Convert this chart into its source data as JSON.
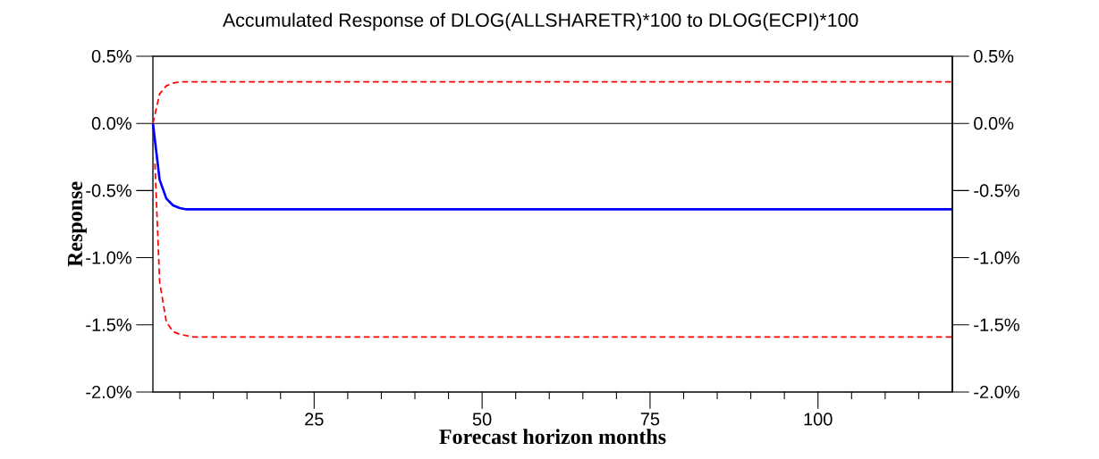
{
  "chart_data": {
    "type": "line",
    "title": "Accumulated Response of DLOG(ALLSHARETR)*100 to DLOG(ECPI)*100",
    "xlabel": "Forecast horizon months",
    "ylabel": "Response",
    "series": [
      {
        "color": "#0000ff",
        "line_style": "solid",
        "x": [
          1,
          2,
          3,
          4,
          5,
          6,
          120
        ],
        "values": [
          0,
          -0.42,
          -0.56,
          -0.61,
          -0.63,
          -0.64,
          -0.64
        ]
      },
      {
        "color": "#ff0000",
        "line_style": "dashed",
        "x": [
          1,
          2,
          3,
          4,
          5,
          6,
          120
        ],
        "values": [
          0,
          0.22,
          0.28,
          0.3,
          0.31,
          0.31,
          0.31
        ]
      },
      {
        "color": "#ff0000",
        "line_style": "dashed",
        "x": [
          1.3,
          2,
          3,
          4,
          5,
          6,
          7,
          120
        ],
        "values": [
          -0.3,
          -1.18,
          -1.48,
          -1.55,
          -1.57,
          -1.58,
          -1.59,
          -1.59
        ]
      }
    ],
    "xlim": [
      1,
      120
    ],
    "xticks": [
      {
        "value": 5,
        "label": null
      },
      {
        "value": 10,
        "label": null
      },
      {
        "value": 15,
        "label": null
      },
      {
        "value": 20,
        "label": null
      },
      25,
      {
        "value": 30,
        "label": null
      },
      {
        "value": 35,
        "label": null
      },
      {
        "value": 40,
        "label": null
      },
      {
        "value": 45,
        "label": null
      },
      50,
      {
        "value": 55,
        "label": null
      },
      {
        "value": 60,
        "label": null
      },
      {
        "value": 65,
        "label": null
      },
      {
        "value": 70,
        "label": null
      },
      75,
      {
        "value": 80,
        "label": null
      },
      {
        "value": 85,
        "label": null
      },
      {
        "value": 90,
        "label": null
      },
      {
        "value": 95,
        "label": null
      },
      100,
      {
        "value": 105,
        "label": null
      },
      {
        "value": 110,
        "label": null
      },
      {
        "value": 115,
        "label": null
      }
    ],
    "ylim": [
      -2.0,
      0.5
    ],
    "yticks": [
      {
        "value": -2.0,
        "label": "-2.0%"
      },
      {
        "value": -1.5,
        "label": "-1.5%"
      },
      {
        "value": -1.0,
        "label": "-1.0%"
      },
      {
        "value": -0.5,
        "label": "-0.5%"
      },
      {
        "value": 0.0,
        "label": "0.0%"
      },
      {
        "value": 0.5,
        "label": "0.5%"
      }
    ],
    "y2lim": [
      -2.0,
      0.5
    ],
    "y2ticks": [
      {
        "value": -2.0,
        "label": "-2.0%"
      },
      {
        "value": -1.5,
        "label": "-1.5%"
      },
      {
        "value": -1.0,
        "label": "-1.0%"
      },
      {
        "value": -0.5,
        "label": "-0.5%"
      },
      {
        "value": 0.0,
        "label": "0.0%"
      },
      {
        "value": 0.5,
        "label": "0.5%"
      }
    ],
    "ref_lines": [
      {
        "axis": "y",
        "value": 0,
        "color": "#000000"
      }
    ],
    "grid": false
  }
}
